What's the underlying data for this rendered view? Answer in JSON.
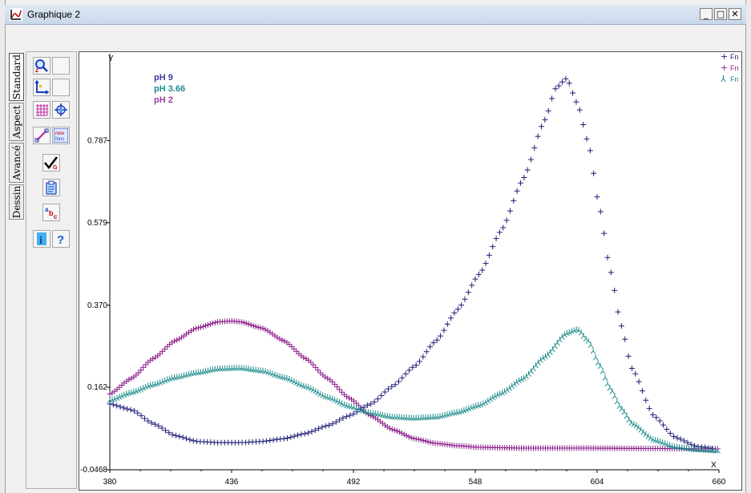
{
  "window": {
    "title": "Graphique 2",
    "minimize_label": "_",
    "maximize_label": "□",
    "close_label": "✕"
  },
  "tabs": [
    {
      "label": "Standard",
      "active": true
    },
    {
      "label": "Aspect",
      "active": false
    },
    {
      "label": "Avancé",
      "active": false
    },
    {
      "label": "Dessin",
      "active": false
    }
  ],
  "toolbar": {
    "new_func_line1": "new",
    "new_func_line2": "fonc",
    "label_text_a": "a",
    "label_text_b": "b",
    "label_text_c": "c",
    "check_sub": "G",
    "info_glyph": "i",
    "help_glyph": "?"
  },
  "chart_data": {
    "type": "scatter",
    "title": "",
    "xlabel": "X",
    "ylabel": "Y",
    "xlim": [
      380,
      660
    ],
    "ylim": [
      -0.0468,
      0.995
    ],
    "x_ticks": [
      "380",
      "436",
      "492",
      "548",
      "604",
      "660"
    ],
    "y_ticks": [
      "-0.0468",
      "0.162",
      "0.370",
      "0.579",
      "0.787"
    ],
    "annotations": [
      {
        "text": "pH 9",
        "color": "#3c3ca0"
      },
      {
        "text": "pH 3.66",
        "color": "#1e8c8c"
      },
      {
        "text": "pH 2",
        "color": "#a03ca0"
      }
    ],
    "legend": {
      "position": "top-right",
      "entries": [
        {
          "marker": "+",
          "label": "Fn",
          "color": "#1e1e78"
        },
        {
          "marker": "+",
          "label": "Fn",
          "color": "#8c1e8c"
        },
        {
          "marker": "⅄",
          "label": "Fn",
          "color": "#1e8c8c"
        }
      ]
    },
    "series": [
      {
        "name": "pH 9",
        "color": "#1e1e78",
        "marker": "+",
        "x": [
          380,
          390,
          400,
          410,
          420,
          430,
          440,
          450,
          460,
          470,
          480,
          490,
          500,
          510,
          520,
          530,
          540,
          550,
          560,
          570,
          580,
          585,
          590,
          595,
          600,
          605,
          610,
          615,
          620,
          630,
          640,
          650,
          660
        ],
        "values": [
          0.12,
          0.105,
          0.07,
          0.04,
          0.025,
          0.022,
          0.022,
          0.025,
          0.032,
          0.045,
          0.065,
          0.09,
          0.12,
          0.165,
          0.215,
          0.28,
          0.36,
          0.45,
          0.56,
          0.69,
          0.84,
          0.92,
          0.945,
          0.88,
          0.78,
          0.62,
          0.46,
          0.32,
          0.21,
          0.09,
          0.035,
          0.012,
          0.005
        ]
      },
      {
        "name": "pH 2",
        "color": "#8c1e8c",
        "marker": "+",
        "x": [
          380,
          390,
          400,
          410,
          420,
          430,
          436,
          440,
          450,
          460,
          470,
          480,
          490,
          500,
          510,
          520,
          530,
          540,
          550,
          570,
          600,
          630,
          660
        ],
        "values": [
          0.145,
          0.185,
          0.235,
          0.28,
          0.312,
          0.328,
          0.33,
          0.328,
          0.312,
          0.28,
          0.235,
          0.185,
          0.135,
          0.09,
          0.055,
          0.032,
          0.02,
          0.014,
          0.01,
          0.008,
          0.008,
          0.007,
          0.006
        ]
      },
      {
        "name": "pH 3.66",
        "color": "#1e8c8c",
        "marker": "⅄",
        "x": [
          380,
          390,
          400,
          410,
          420,
          430,
          440,
          450,
          460,
          470,
          480,
          490,
          500,
          510,
          520,
          530,
          540,
          550,
          560,
          570,
          580,
          590,
          595,
          600,
          605,
          610,
          615,
          620,
          630,
          640,
          650,
          660
        ],
        "values": [
          0.13,
          0.15,
          0.17,
          0.188,
          0.2,
          0.21,
          0.212,
          0.205,
          0.188,
          0.165,
          0.138,
          0.115,
          0.098,
          0.088,
          0.085,
          0.088,
          0.1,
          0.118,
          0.148,
          0.185,
          0.24,
          0.3,
          0.31,
          0.28,
          0.22,
          0.16,
          0.11,
          0.072,
          0.03,
          0.012,
          0.005,
          0.002
        ]
      }
    ]
  }
}
